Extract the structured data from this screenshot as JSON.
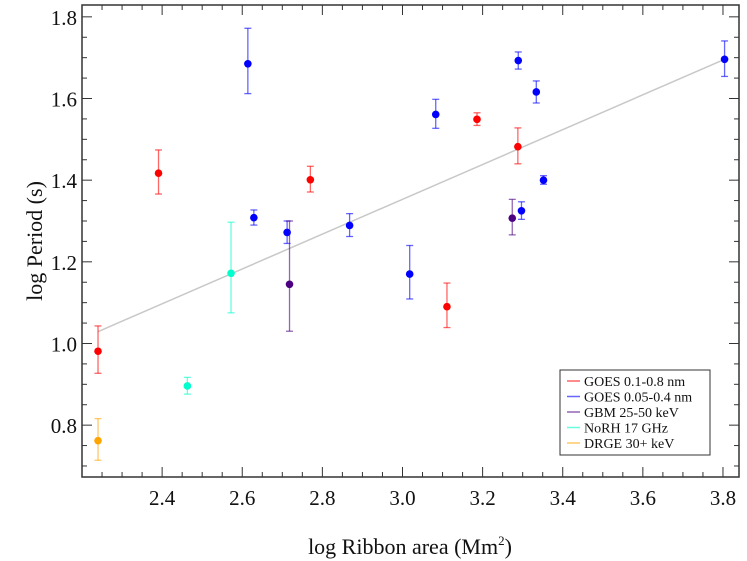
{
  "chart_data": {
    "type": "scatter",
    "title": "",
    "xlabel": "log Ribbon area (Mm",
    "xlabel_sup": "2",
    "xlabel_end": ")",
    "ylabel": "log Period (s)",
    "xlim": [
      2.2,
      3.84
    ],
    "ylim": [
      0.673,
      1.829
    ],
    "x_ticks": [
      "2.4",
      "2.6",
      "2.8",
      "3.0",
      "3.2",
      "3.4",
      "3.6",
      "3.8"
    ],
    "y_ticks": [
      "0.8",
      "1.0",
      "1.2",
      "1.4",
      "1.6",
      "1.8"
    ],
    "grid": false,
    "legend_placement": "bottom-right",
    "fit_line": {
      "color": "#c8c8c8",
      "x": [
        2.24,
        3.804
      ],
      "y": [
        1.029,
        1.696
      ]
    },
    "series": [
      {
        "name": "GOES 0.1-0.8 nm",
        "color": "#ff0000",
        "points": [
          {
            "x": 2.24,
            "y": 0.981,
            "lo": 0.927,
            "hi": 1.043
          },
          {
            "x": 2.391,
            "y": 1.417,
            "lo": 1.366,
            "hi": 1.474
          },
          {
            "x": 2.77,
            "y": 1.401,
            "lo": 1.371,
            "hi": 1.434
          },
          {
            "x": 3.111,
            "y": 1.09,
            "lo": 1.039,
            "hi": 1.148
          },
          {
            "x": 3.186,
            "y": 1.549,
            "lo": 1.534,
            "hi": 1.565
          },
          {
            "x": 3.288,
            "y": 1.482,
            "lo": 1.44,
            "hi": 1.528
          }
        ]
      },
      {
        "name": "GOES 0.05-0.4 nm",
        "color": "#0000ff",
        "points": [
          {
            "x": 2.614,
            "y": 1.685,
            "lo": 1.612,
            "hi": 1.772
          },
          {
            "x": 2.629,
            "y": 1.308,
            "lo": 1.29,
            "hi": 1.327
          },
          {
            "x": 2.712,
            "y": 1.272,
            "lo": 1.245,
            "hi": 1.3
          },
          {
            "x": 2.868,
            "y": 1.289,
            "lo": 1.262,
            "hi": 1.318
          },
          {
            "x": 3.018,
            "y": 1.17,
            "lo": 1.109,
            "hi": 1.24
          },
          {
            "x": 3.083,
            "y": 1.561,
            "lo": 1.527,
            "hi": 1.598
          },
          {
            "x": 3.289,
            "y": 1.693,
            "lo": 1.672,
            "hi": 1.714
          },
          {
            "x": 3.297,
            "y": 1.325,
            "lo": 1.304,
            "hi": 1.347
          },
          {
            "x": 3.334,
            "y": 1.616,
            "lo": 1.589,
            "hi": 1.643
          },
          {
            "x": 3.352,
            "y": 1.4,
            "lo": 1.39,
            "hi": 1.411
          },
          {
            "x": 3.804,
            "y": 1.696,
            "lo": 1.654,
            "hi": 1.741
          }
        ]
      },
      {
        "name": "GBM 25-50 keV",
        "color": "#4b0082",
        "points": [
          {
            "x": 2.718,
            "y": 1.145,
            "lo": 1.03,
            "hi": 1.3
          },
          {
            "x": 3.274,
            "y": 1.307,
            "lo": 1.266,
            "hi": 1.353
          }
        ]
      },
      {
        "name": "NoRH 17 GHz",
        "color": "#00ffcc",
        "points": [
          {
            "x": 2.463,
            "y": 0.896,
            "lo": 0.876,
            "hi": 0.917
          },
          {
            "x": 2.572,
            "y": 1.172,
            "lo": 1.075,
            "hi": 1.297
          }
        ]
      },
      {
        "name": "DRGE 30+ keV",
        "color": "#ffa500",
        "points": [
          {
            "x": 2.24,
            "y": 0.762,
            "lo": 0.714,
            "hi": 0.816
          }
        ]
      }
    ]
  }
}
